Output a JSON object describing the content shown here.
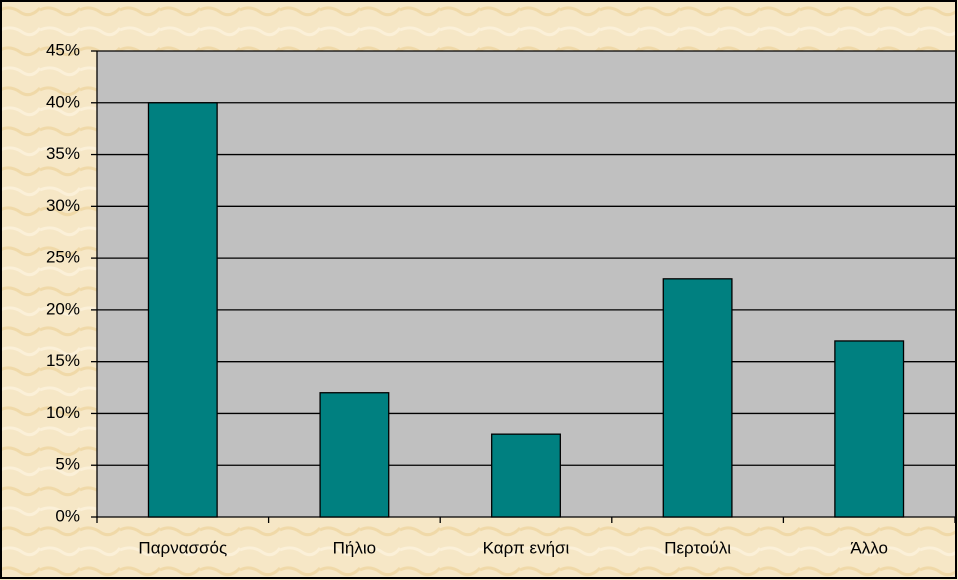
{
  "chart_data": {
    "type": "bar",
    "categories": [
      "Παρνασσός",
      "Πήλιο",
      "Καρπ ενήσι",
      "Περτούλι",
      "Άλλο"
    ],
    "values": [
      40,
      12,
      8,
      23,
      17
    ],
    "color": "#008080",
    "ylim": [
      0,
      45
    ],
    "yticks": [
      {
        "value": 0,
        "label": "0%"
      },
      {
        "value": 5,
        "label": "5%"
      },
      {
        "value": 10,
        "label": "10%"
      },
      {
        "value": 15,
        "label": "15%"
      },
      {
        "value": 20,
        "label": "20%"
      },
      {
        "value": 25,
        "label": "25%"
      },
      {
        "value": 30,
        "label": "30%"
      },
      {
        "value": 35,
        "label": "35%"
      },
      {
        "value": 40,
        "label": "40%"
      },
      {
        "value": 45,
        "label": "45%"
      }
    ],
    "grid": true
  }
}
